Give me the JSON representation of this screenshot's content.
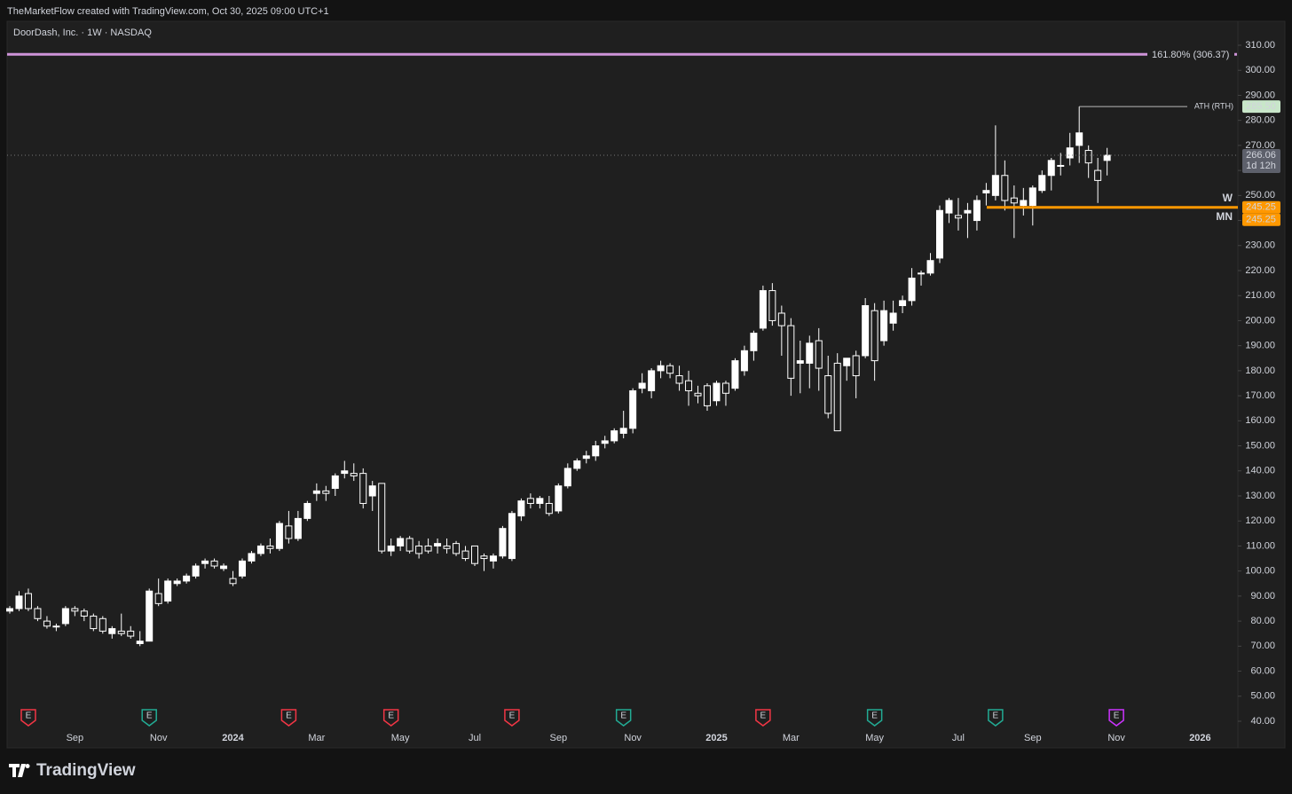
{
  "header": {
    "credit": "TheMarketFlow created with TradingView.com, Oct 30, 2025 09:00 UTC+1"
  },
  "footer": {
    "brand": "TradingView"
  },
  "chart_data": {
    "type": "candlestick",
    "title": "DoorDash, Inc. · 1W · NASDAQ",
    "countdown": "1d 12h",
    "up_color": "#ffffff",
    "down_color": "#1e1e1e",
    "wick_color": "#ffffff",
    "open": [
      84,
      85,
      91,
      85,
      80,
      78,
      79,
      85,
      84,
      82,
      81,
      75,
      76,
      76,
      71,
      72,
      91,
      88,
      95,
      96,
      98,
      103,
      104,
      101,
      97,
      98,
      104,
      107,
      110,
      109,
      118,
      113,
      121,
      131,
      132,
      133,
      139,
      139,
      139,
      130,
      135,
      108,
      110,
      113,
      110,
      110,
      110,
      110,
      111,
      108,
      110,
      106,
      104,
      106,
      105,
      122,
      129,
      127,
      127,
      124,
      134,
      141,
      145,
      146,
      151,
      152,
      155,
      157,
      173,
      172,
      180,
      182,
      178,
      176,
      171,
      174,
      168,
      175,
      173,
      180,
      188,
      197,
      212,
      203,
      198,
      183,
      183,
      192,
      178,
      183,
      182,
      186,
      186,
      204,
      192,
      199,
      206,
      208,
      219,
      219,
      225,
      243,
      242,
      243,
      240,
      251,
      250,
      258,
      249,
      246,
      246,
      252,
      258,
      262,
      265,
      270,
      268,
      260,
      264
    ],
    "high": [
      86,
      92,
      93,
      86,
      82,
      79,
      86,
      86,
      85,
      83,
      82,
      78,
      83,
      78,
      76,
      93,
      97,
      97,
      97,
      99,
      103,
      105,
      105,
      103,
      100,
      105,
      108,
      111,
      113,
      120,
      124,
      124,
      128,
      135,
      134,
      139,
      144,
      143,
      141,
      136,
      135,
      113,
      114,
      114,
      112,
      113,
      113,
      113,
      112,
      110,
      110,
      107,
      107,
      118,
      124,
      129,
      131,
      130,
      130,
      135,
      143,
      145,
      148,
      152,
      154,
      157,
      164,
      173,
      179,
      181,
      184,
      183,
      182,
      180,
      174,
      175,
      176,
      176,
      185,
      190,
      196,
      214,
      215,
      206,
      201,
      192,
      194,
      197,
      186,
      187,
      185,
      188,
      209,
      207,
      208,
      208,
      210,
      221,
      220,
      227,
      246,
      249,
      249,
      247,
      250,
      255,
      278,
      264,
      254,
      253,
      254,
      260,
      265,
      267,
      275,
      285.5,
      270,
      265,
      269
    ],
    "low": [
      83,
      84,
      84,
      80,
      77,
      76,
      78,
      82,
      80,
      76,
      75,
      73,
      74,
      73,
      70,
      72,
      86,
      87,
      94,
      95,
      97,
      101,
      101,
      100,
      94,
      97,
      103,
      106,
      107,
      108,
      111,
      112,
      120,
      128,
      128,
      130,
      137,
      136,
      125,
      124,
      107,
      106,
      108,
      107,
      105,
      107,
      107,
      107,
      106,
      104,
      102,
      100,
      101,
      105,
      104,
      120,
      125,
      125,
      122,
      123,
      133,
      140,
      143,
      144,
      149,
      151,
      153,
      155,
      171,
      169,
      177,
      177,
      172,
      166,
      167,
      164,
      166,
      166,
      172,
      178,
      184,
      196,
      198,
      186,
      170,
      171,
      173,
      172,
      161,
      156,
      176,
      169,
      185,
      176,
      190,
      196,
      203,
      206,
      214,
      218,
      223,
      239,
      236,
      233,
      236,
      246,
      248,
      244,
      233,
      242,
      238,
      251,
      252,
      258,
      262,
      263,
      257,
      247,
      258
    ],
    "close": [
      85,
      90,
      85,
      81,
      78,
      78,
      85,
      84,
      82,
      77,
      76,
      77,
      75,
      74,
      72,
      92,
      87,
      96,
      96,
      98,
      102,
      104,
      102,
      102,
      95,
      104,
      107,
      110,
      109,
      119,
      113,
      121,
      127,
      132,
      131,
      138,
      140,
      138,
      127,
      134,
      108,
      110,
      113,
      108,
      107,
      108,
      111,
      109,
      107,
      105,
      103,
      105,
      106,
      117,
      123,
      128,
      127,
      129,
      123,
      134,
      141,
      144,
      146,
      150,
      152,
      156,
      157,
      172,
      175,
      180,
      182,
      179,
      175,
      172,
      170,
      166,
      175,
      171,
      184,
      188,
      195,
      212,
      200,
      198,
      177,
      184,
      191,
      181,
      163,
      156,
      185,
      178,
      206,
      184,
      204,
      203,
      208,
      217,
      219,
      224,
      244,
      248,
      241,
      244,
      248,
      252,
      258,
      248,
      247,
      248,
      253,
      258,
      264,
      262,
      269,
      275,
      263,
      256,
      266.06
    ],
    "ylim": [
      40,
      310
    ],
    "yticks": [
      {
        "value": 40,
        "label": "40.00"
      },
      {
        "value": 50,
        "label": "50.00"
      },
      {
        "value": 60,
        "label": "60.00"
      },
      {
        "value": 70,
        "label": "70.00"
      },
      {
        "value": 80,
        "label": "80.00"
      },
      {
        "value": 90,
        "label": "90.00"
      },
      {
        "value": 100,
        "label": "100.00"
      },
      {
        "value": 110,
        "label": "110.00"
      },
      {
        "value": 120,
        "label": "120.00"
      },
      {
        "value": 130,
        "label": "130.00"
      },
      {
        "value": 140,
        "label": "140.00"
      },
      {
        "value": 150,
        "label": "150.00"
      },
      {
        "value": 160,
        "label": "160.00"
      },
      {
        "value": 170,
        "label": "170.00"
      },
      {
        "value": 180,
        "label": "180.00"
      },
      {
        "value": 190,
        "label": "190.00"
      },
      {
        "value": 200,
        "label": "200.00"
      },
      {
        "value": 210,
        "label": "210.00"
      },
      {
        "value": 220,
        "label": "220.00"
      },
      {
        "value": 230,
        "label": "230.00"
      },
      {
        "value": 240,
        "label": "240.00"
      },
      {
        "value": 250,
        "label": "250.00"
      },
      {
        "value": 260,
        "label": "260.00"
      },
      {
        "value": 270,
        "label": "270.00"
      },
      {
        "value": 280,
        "label": "280.00"
      },
      {
        "value": 290,
        "label": "290.00"
      },
      {
        "value": 300,
        "label": "300.00"
      },
      {
        "value": 310,
        "label": "310.00"
      }
    ],
    "xticks": [
      {
        "value": 7,
        "label": "Sep"
      },
      {
        "value": 16,
        "label": "Nov"
      },
      {
        "value": 24,
        "label": "2024"
      },
      {
        "value": 33,
        "label": "Mar"
      },
      {
        "value": 42,
        "label": "May"
      },
      {
        "value": 50,
        "label": "Jul"
      },
      {
        "value": 59,
        "label": "Sep"
      },
      {
        "value": 67,
        "label": "Nov"
      },
      {
        "value": 76,
        "label": "2025"
      },
      {
        "value": 84,
        "label": "Mar"
      },
      {
        "value": 93,
        "label": "May"
      },
      {
        "value": 102,
        "label": "Jul"
      },
      {
        "value": 110,
        "label": "Sep"
      },
      {
        "value": 119,
        "label": "Nov"
      },
      {
        "value": 128,
        "label": "2026"
      }
    ],
    "levels": [
      {
        "label": "161.80% (306.37)",
        "value": 306.37,
        "color": "#ce93d8"
      },
      {
        "label": "ATH (RTH)",
        "value": 285.5,
        "value_label": "285.50",
        "color": "#c8e6c9"
      },
      {
        "label": "W",
        "value": 245.25,
        "color": "#ff9800"
      },
      {
        "label": "MN",
        "value": 245.25,
        "color": "#ff9800"
      }
    ],
    "events": [
      {
        "index": 2,
        "label": "E",
        "color": "#f23645"
      },
      {
        "index": 15,
        "label": "E",
        "color": "#22ab94"
      },
      {
        "index": 30,
        "label": "E",
        "color": "#f23645"
      },
      {
        "index": 41,
        "label": "E",
        "color": "#f23645"
      },
      {
        "index": 54,
        "label": "E",
        "color": "#f23645"
      },
      {
        "index": 66,
        "label": "E",
        "color": "#22ab94"
      },
      {
        "index": 81,
        "label": "E",
        "color": "#f23645"
      },
      {
        "index": 93,
        "label": "E",
        "color": "#22ab94"
      },
      {
        "index": 106,
        "label": "E",
        "color": "#22ab94"
      },
      {
        "index": 119,
        "label": "E",
        "color": "#cc33ff"
      }
    ]
  }
}
